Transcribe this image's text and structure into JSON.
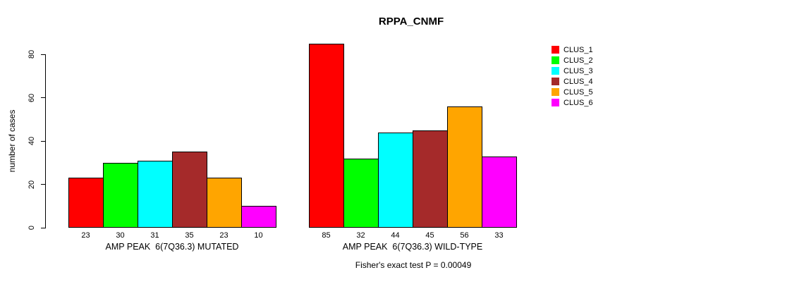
{
  "chart_data": {
    "type": "bar",
    "title": "RPPA_CNMF",
    "ylabel": "number of cases",
    "ylim": [
      0,
      85
    ],
    "yticks": [
      0,
      20,
      40,
      60,
      80
    ],
    "grid": false,
    "legend_position": "right",
    "categories": [
      "CLUS_1",
      "CLUS_2",
      "CLUS_3",
      "CLUS_4",
      "CLUS_5",
      "CLUS_6"
    ],
    "series_colors": [
      "#ff0000",
      "#00ff00",
      "#00ffff",
      "#a52a2a",
      "#ffa500",
      "#ff00ff"
    ],
    "groups": [
      {
        "label": "AMP PEAK  6(7Q36.3) MUTATED",
        "values": [
          23,
          30,
          31,
          35,
          23,
          10
        ]
      },
      {
        "label": "AMP PEAK  6(7Q36.3) WILD-TYPE",
        "values": [
          85,
          32,
          44,
          45,
          56,
          33
        ]
      }
    ],
    "bar_value_labels_shown": true,
    "legend": [
      {
        "label": "CLUS_1",
        "color": "#ff0000"
      },
      {
        "label": "CLUS_2",
        "color": "#00ff00"
      },
      {
        "label": "CLUS_3",
        "color": "#00ffff"
      },
      {
        "label": "CLUS_4",
        "color": "#a52a2a"
      },
      {
        "label": "CLUS_5",
        "color": "#ffa500"
      },
      {
        "label": "CLUS_6",
        "color": "#ff00ff"
      }
    ],
    "annotation": "Fisher's exact test P = 0.00049"
  }
}
